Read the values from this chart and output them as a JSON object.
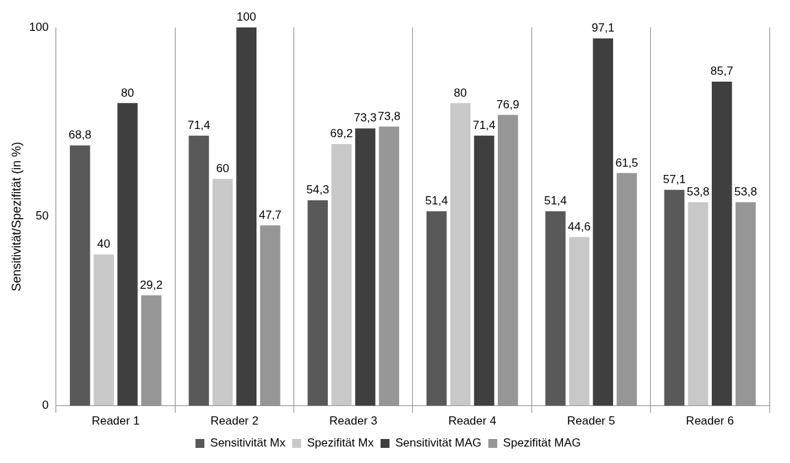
{
  "chart_data": {
    "type": "bar",
    "ylabel": "Sensitivität/Spezifität (in %)",
    "categories": [
      "Reader 1",
      "Reader 2",
      "Reader 3",
      "Reader 4",
      "Reader 5",
      "Reader 6"
    ],
    "series": [
      {
        "name": "Sensitivität Mx",
        "color": "#595959",
        "values": [
          68.8,
          71.4,
          54.3,
          51.4,
          51.4,
          57.1
        ],
        "value_labels": [
          "68,8",
          "71,4",
          "54,3",
          "51,4",
          "51,4",
          "57,1"
        ]
      },
      {
        "name": "Spezifität Mx",
        "color": "#c8c8c8",
        "values": [
          40,
          60,
          69.2,
          80,
          44.6,
          53.8
        ],
        "value_labels": [
          "40",
          "60",
          "69,2",
          "80",
          "44,6",
          "53,8"
        ]
      },
      {
        "name": "Sensitivität MAG",
        "color": "#3f3f3f",
        "values": [
          80,
          100,
          73.3,
          71.4,
          97.1,
          85.7
        ],
        "value_labels": [
          "80",
          "100",
          "73,3",
          "71,4",
          "97,1",
          "85,7"
        ]
      },
      {
        "name": "Spezifität MAG",
        "color": "#969696",
        "values": [
          29.2,
          47.7,
          73.8,
          76.9,
          61.5,
          53.8
        ],
        "value_labels": [
          "29,2",
          "47,7",
          "73,8",
          "76,9",
          "61,5",
          "53,8"
        ]
      }
    ],
    "ylim": [
      0,
      100
    ],
    "yticks": [
      0,
      50,
      100
    ],
    "grid": "x",
    "legend": "bottom"
  }
}
